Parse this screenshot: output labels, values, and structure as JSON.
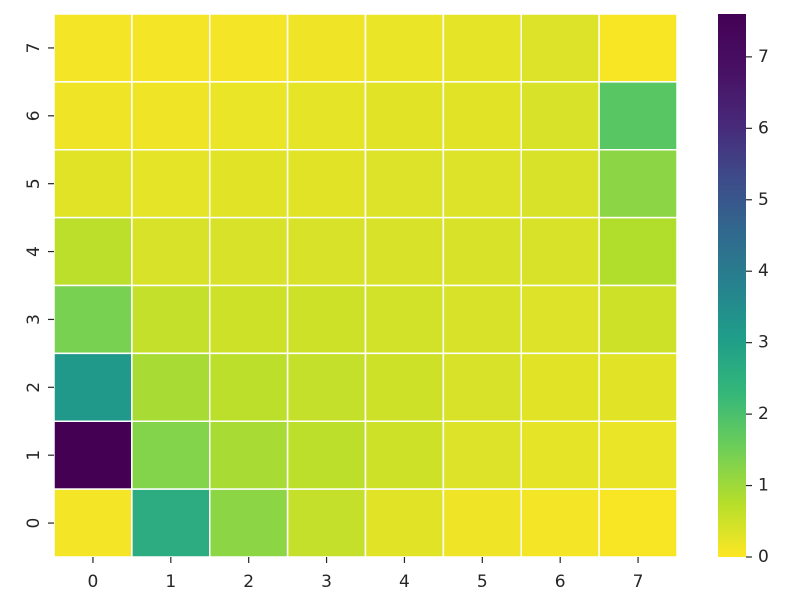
{
  "chart_data": {
    "type": "heatmap",
    "title": "",
    "xlabel": "",
    "ylabel": "",
    "x_categories": [
      "0",
      "1",
      "2",
      "3",
      "4",
      "5",
      "6",
      "7"
    ],
    "y_categories": [
      "0",
      "1",
      "2",
      "3",
      "4",
      "5",
      "6",
      "7"
    ],
    "values_by_row": [
      {
        "y": "7",
        "values": [
          0.1,
          0.1,
          0.1,
          0.15,
          0.2,
          0.25,
          0.35,
          0.05
        ]
      },
      {
        "y": "6",
        "values": [
          0.15,
          0.15,
          0.2,
          0.25,
          0.3,
          0.3,
          0.4,
          1.8
        ]
      },
      {
        "y": "5",
        "values": [
          0.3,
          0.25,
          0.3,
          0.3,
          0.35,
          0.35,
          0.4,
          1.2
        ]
      },
      {
        "y": "4",
        "values": [
          0.7,
          0.4,
          0.4,
          0.4,
          0.4,
          0.4,
          0.4,
          0.8
        ]
      },
      {
        "y": "3",
        "values": [
          1.4,
          0.6,
          0.5,
          0.5,
          0.45,
          0.4,
          0.35,
          0.5
        ]
      },
      {
        "y": "2",
        "values": [
          3.2,
          0.9,
          0.7,
          0.6,
          0.5,
          0.4,
          0.3,
          0.3
        ]
      },
      {
        "y": "1",
        "values": [
          7.6,
          1.3,
          0.9,
          0.7,
          0.5,
          0.35,
          0.25,
          0.2
        ]
      },
      {
        "y": "0",
        "values": [
          0.1,
          2.6,
          1.2,
          0.6,
          0.3,
          0.15,
          0.1,
          0.05
        ]
      }
    ],
    "colormap": "viridis_r",
    "vmin": 0,
    "vmax": 7.6,
    "colorbar_ticks": [
      "0",
      "1",
      "2",
      "3",
      "4",
      "5",
      "6",
      "7"
    ],
    "cell_border_color": "#ffffff",
    "grid": false
  }
}
